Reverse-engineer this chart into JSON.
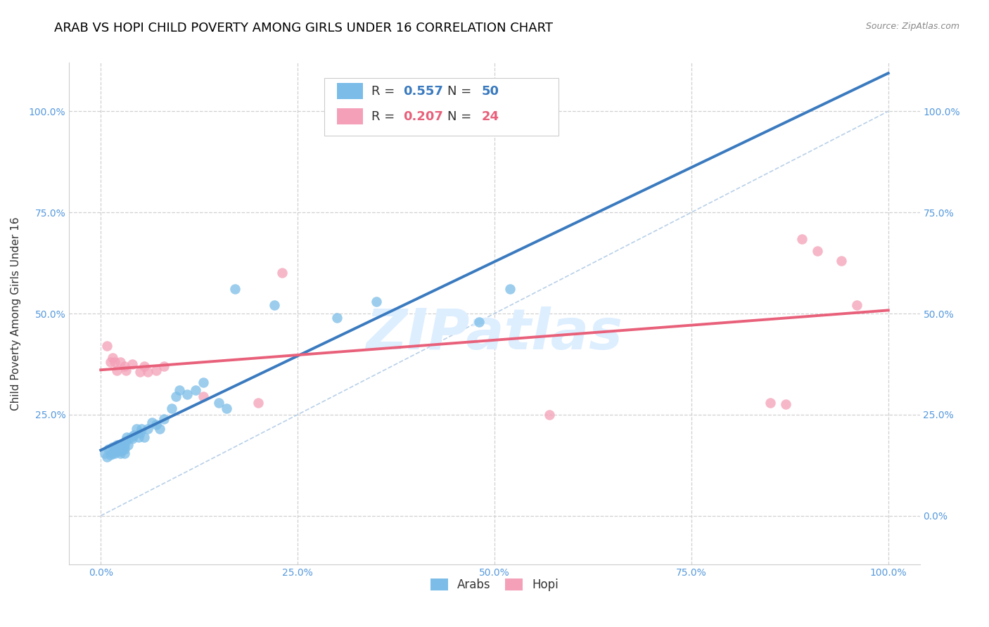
{
  "title": "ARAB VS HOPI CHILD POVERTY AMONG GIRLS UNDER 16 CORRELATION CHART",
  "source": "Source: ZipAtlas.com",
  "ylabel": "Child Poverty Among Girls Under 16",
  "arab_label": "Arabs",
  "hopi_label": "Hopi",
  "arab_R": 0.557,
  "arab_N": 50,
  "hopi_R": 0.207,
  "hopi_N": 24,
  "arab_color": "#7bbde8",
  "hopi_color": "#f4a0b8",
  "arab_line_color": "#3a7abf",
  "hopi_line_color": "#e8607a",
  "diagonal_color": "#b8d0e8",
  "background_color": "#ffffff",
  "grid_color": "#d0d0d0",
  "tick_color": "#5599dd",
  "xlim": [
    -0.04,
    1.04
  ],
  "ylim": [
    -0.12,
    1.12
  ],
  "xticks": [
    0.0,
    0.25,
    0.5,
    0.75,
    1.0
  ],
  "yticks": [
    0.0,
    0.25,
    0.5,
    0.75,
    1.0
  ],
  "xticklabels": [
    "0.0%",
    "25.0%",
    "50.0%",
    "75.0%",
    "100.0%"
  ],
  "yticklabels": [
    "0.0%",
    "25.0%",
    "50.0%",
    "75.0%",
    "100.0%"
  ],
  "arab_x": [
    0.005,
    0.008,
    0.01,
    0.012,
    0.015,
    0.015,
    0.018,
    0.018,
    0.02,
    0.02,
    0.022,
    0.022,
    0.025,
    0.025,
    0.025,
    0.028,
    0.028,
    0.03,
    0.03,
    0.03,
    0.032,
    0.033,
    0.035,
    0.038,
    0.04,
    0.042,
    0.045,
    0.048,
    0.05,
    0.052,
    0.055,
    0.06,
    0.065,
    0.07,
    0.075,
    0.08,
    0.09,
    0.095,
    0.1,
    0.11,
    0.12,
    0.13,
    0.15,
    0.16,
    0.17,
    0.22,
    0.3,
    0.35,
    0.48,
    0.52
  ],
  "arab_y": [
    0.155,
    0.145,
    0.165,
    0.15,
    0.155,
    0.17,
    0.155,
    0.165,
    0.16,
    0.175,
    0.165,
    0.175,
    0.155,
    0.16,
    0.17,
    0.165,
    0.175,
    0.155,
    0.165,
    0.175,
    0.185,
    0.195,
    0.175,
    0.195,
    0.19,
    0.2,
    0.215,
    0.195,
    0.205,
    0.215,
    0.195,
    0.215,
    0.23,
    0.225,
    0.215,
    0.24,
    0.265,
    0.295,
    0.31,
    0.3,
    0.31,
    0.33,
    0.28,
    0.265,
    0.56,
    0.52,
    0.49,
    0.53,
    0.48,
    0.56
  ],
  "hopi_x": [
    0.008,
    0.012,
    0.015,
    0.018,
    0.02,
    0.025,
    0.03,
    0.032,
    0.04,
    0.05,
    0.055,
    0.06,
    0.07,
    0.08,
    0.13,
    0.2,
    0.23,
    0.57,
    0.85,
    0.87,
    0.89,
    0.91,
    0.94,
    0.96
  ],
  "hopi_y": [
    0.42,
    0.38,
    0.39,
    0.38,
    0.36,
    0.38,
    0.37,
    0.36,
    0.375,
    0.355,
    0.37,
    0.355,
    0.36,
    0.37,
    0.295,
    0.28,
    0.6,
    0.25,
    0.28,
    0.275,
    0.685,
    0.655,
    0.63,
    0.52
  ],
  "watermark_text": "ZIPatlas",
  "watermark_color": "#ddeeff",
  "title_fontsize": 13,
  "axis_fontsize": 11,
  "tick_fontsize": 10,
  "legend_fontsize": 13
}
